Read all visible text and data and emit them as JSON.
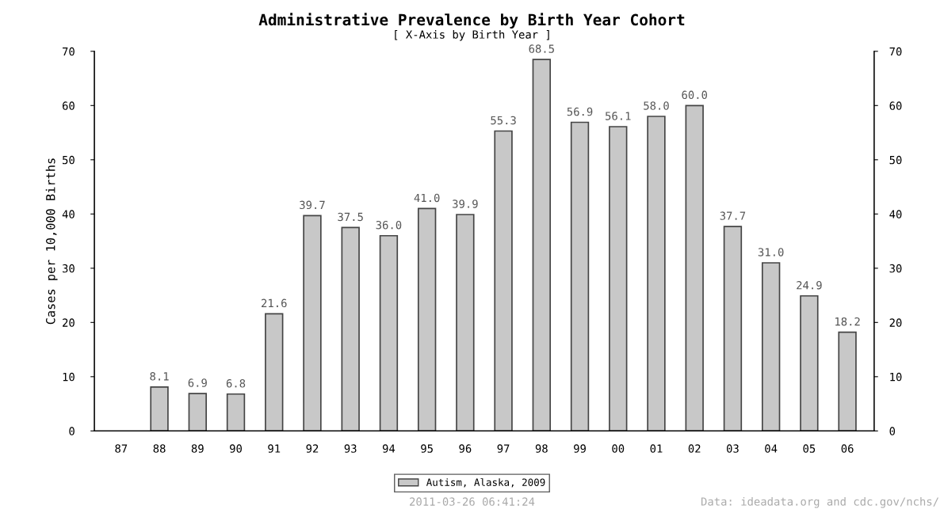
{
  "chart_data": {
    "type": "bar",
    "title": "Administrative Prevalence by Birth Year Cohort",
    "subtitle": "[ X-Axis by Birth Year ]",
    "ylabel": "Cases per 10,000 Births",
    "categories": [
      "87",
      "88",
      "89",
      "90",
      "91",
      "92",
      "93",
      "94",
      "95",
      "96",
      "97",
      "98",
      "99",
      "00",
      "01",
      "02",
      "03",
      "04",
      "05",
      "06"
    ],
    "series": [
      {
        "name": "Autism, Alaska, 2009",
        "color": "#c8c8c8",
        "values": [
          null,
          8.1,
          6.9,
          6.8,
          21.6,
          39.7,
          37.5,
          36.0,
          41.0,
          39.9,
          55.3,
          68.5,
          56.9,
          56.1,
          58.0,
          60.0,
          37.7,
          31.0,
          24.9,
          18.2
        ],
        "value_labels": [
          null,
          "8.1",
          "6.9",
          "6.8",
          "21.6",
          "39.7",
          "37.5",
          "36.0",
          "41.0",
          "39.9",
          "55.3",
          "68.5",
          "56.9",
          "56.1",
          "58.0",
          "60.0",
          "37.7",
          "31.0",
          "24.9",
          "18.2"
        ]
      }
    ],
    "ylim": [
      0,
      70
    ],
    "yticks": [
      0,
      10,
      20,
      30,
      40,
      50,
      60,
      70
    ],
    "y2lim": [
      0,
      70
    ],
    "y2ticks": [
      0,
      10,
      20,
      30,
      40,
      50,
      60,
      70
    ],
    "legend": "bottom",
    "grid": false,
    "annotations": [
      "2011-03-26 06:41:24",
      "Data: ideadata.org and cdc.gov/nchs/"
    ]
  }
}
